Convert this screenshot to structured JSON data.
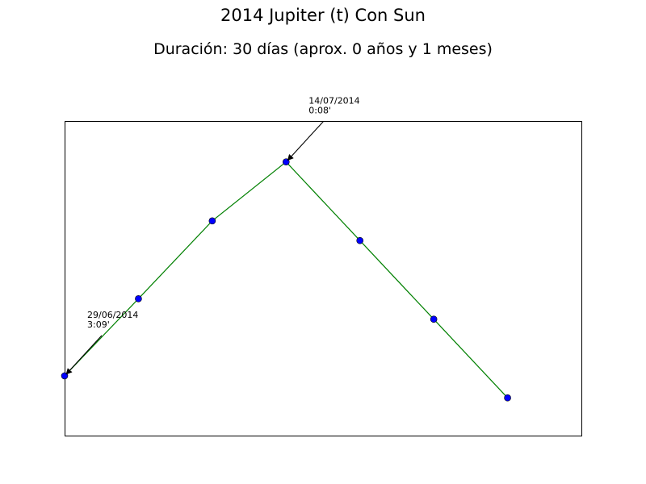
{
  "chart_data": {
    "type": "line",
    "title": "2014 Jupiter (t) Con Sun",
    "subtitle": "Duración: 30 días (aprox. 0 años y 1 meses)",
    "xlabel": "",
    "ylabel": "",
    "grid": false,
    "axes_ticks_visible": false,
    "xlim": [
      0,
      7
    ],
    "ylim": [
      0,
      4
    ],
    "line_color": "#008000",
    "marker_color": "#0000ff",
    "series": [
      {
        "x": [
          0,
          1,
          2,
          3,
          4,
          5,
          6
        ],
        "y": [
          0.76,
          1.74,
          2.73,
          3.48,
          2.48,
          1.48,
          0.48
        ]
      }
    ],
    "annotations": [
      {
        "point_index": 0,
        "date": "29/06/2014",
        "time": "3:09'"
      },
      {
        "point_index": 3,
        "date": "14/07/2014",
        "time": "0:08'"
      }
    ]
  }
}
